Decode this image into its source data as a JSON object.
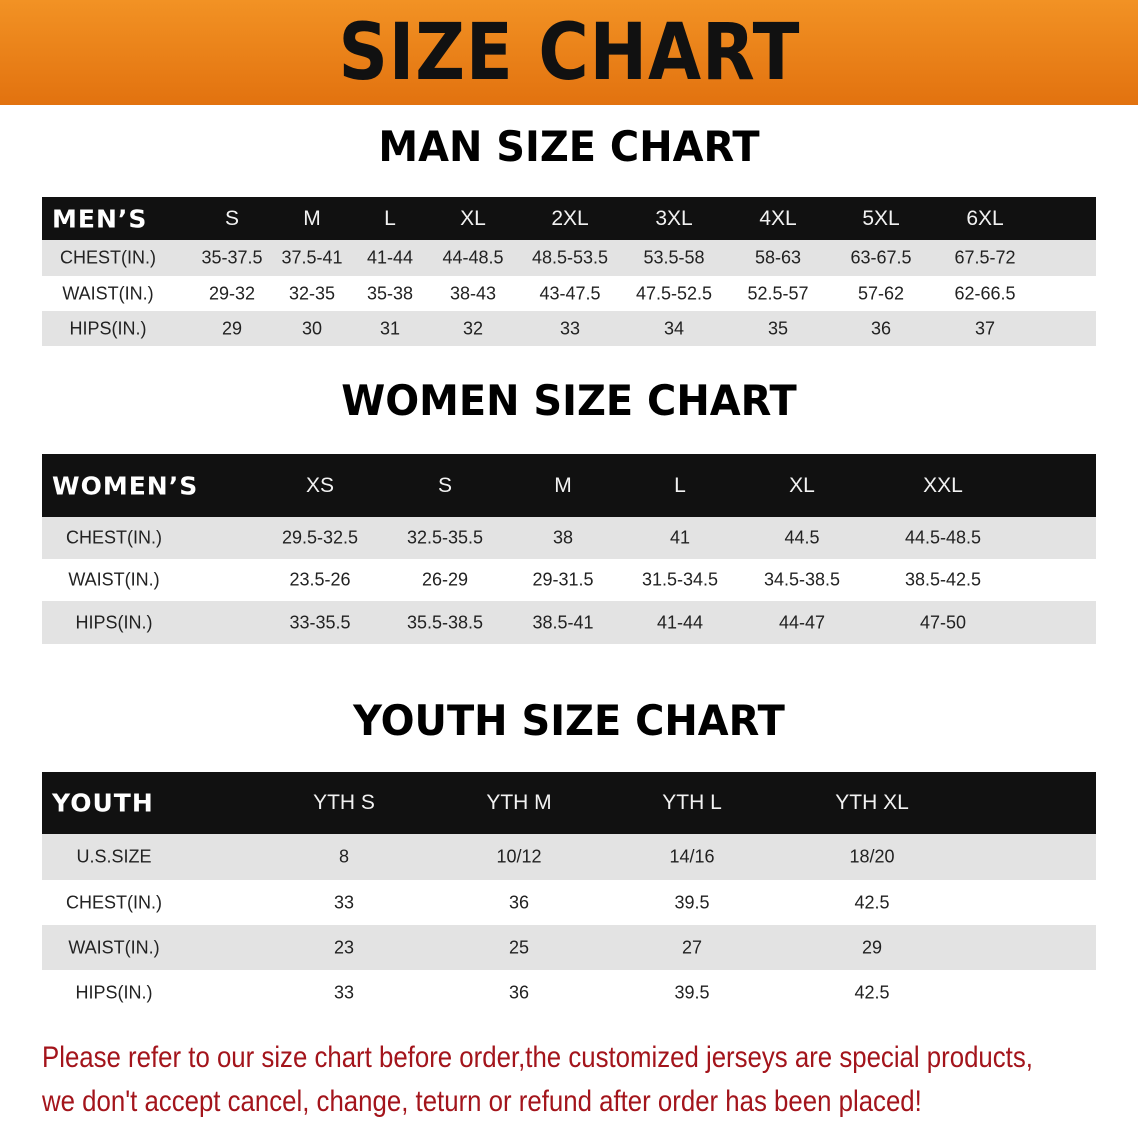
{
  "banner": {
    "title": "SIZE CHART",
    "color": "#ec8118"
  },
  "men": {
    "title": "MAN SIZE CHART",
    "header_label": "MEN’S",
    "sizes": [
      "S",
      "M",
      "L",
      "XL",
      "2XL",
      "3XL",
      "4XL",
      "5XL",
      "6XL"
    ],
    "rows": [
      {
        "label": "CHEST(IN.)",
        "values": [
          "35-37.5",
          "37.5-41",
          "41-44",
          "44-48.5",
          "48.5-53.5",
          "53.5-58",
          "58-63",
          "63-67.5",
          "67.5-72"
        ]
      },
      {
        "label": "WAIST(IN.)",
        "values": [
          "29-32",
          "32-35",
          "35-38",
          "38-43",
          "43-47.5",
          "47.5-52.5",
          "52.5-57",
          "57-62",
          "62-66.5"
        ]
      },
      {
        "label": "HIPS(IN.)",
        "values": [
          "29",
          "30",
          "31",
          "32",
          "33",
          "34",
          "35",
          "36",
          "37"
        ]
      }
    ]
  },
  "women": {
    "title": "WOMEN SIZE CHART",
    "header_label": "WOMEN’S",
    "sizes": [
      "XS",
      "S",
      "M",
      "L",
      "XL",
      "XXL"
    ],
    "rows": [
      {
        "label": "CHEST(IN.)",
        "values": [
          "29.5-32.5",
          "32.5-35.5",
          "38",
          "41",
          "44.5",
          "44.5-48.5"
        ]
      },
      {
        "label": "WAIST(IN.)",
        "values": [
          "23.5-26",
          "26-29",
          "29-31.5",
          "31.5-34.5",
          "34.5-38.5",
          "38.5-42.5"
        ]
      },
      {
        "label": "HIPS(IN.)",
        "values": [
          "33-35.5",
          "35.5-38.5",
          "38.5-41",
          "41-44",
          "44-47",
          "47-50"
        ]
      }
    ]
  },
  "youth": {
    "title": "YOUTH SIZE CHART",
    "header_label": "YOUTH",
    "sizes": [
      "YTH S",
      "YTH M",
      "YTH L",
      "YTH XL"
    ],
    "rows": [
      {
        "label": "U.S.SIZE",
        "values": [
          "8",
          "10/12",
          "14/16",
          "18/20"
        ]
      },
      {
        "label": "CHEST(IN.)",
        "values": [
          "33",
          "36",
          "39.5",
          "42.5"
        ]
      },
      {
        "label": "WAIST(IN.)",
        "values": [
          "23",
          "25",
          "27",
          "29"
        ]
      },
      {
        "label": "HIPS(IN.)",
        "values": [
          "33",
          "36",
          "39.5",
          "42.5"
        ]
      }
    ]
  },
  "note": {
    "line1": "Please refer to our size chart before order,the customized jerseys are special products,",
    "line2": "we don't accept cancel, change, teturn or refund after order has been placed!",
    "color": "#a3141b"
  }
}
